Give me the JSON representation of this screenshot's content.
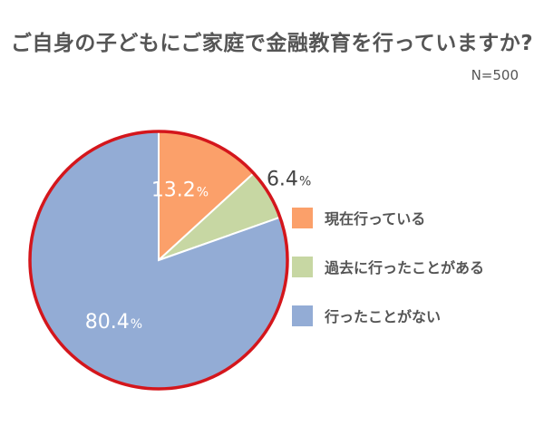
{
  "title": "ご自身の子どもにご家庭で金融教育を行っていますか?",
  "sample_size": "N=500",
  "colors": {
    "outline": "#d4161c",
    "separator": "#ffffff"
  },
  "chart_data": {
    "type": "pie",
    "title": "ご自身の子どもにご家庭で金融教育を行っていますか?",
    "note": "N=500",
    "legend_position": "right",
    "slices": [
      {
        "label": "現在行っている",
        "value": 13.2,
        "display": "13.2",
        "unit": "%",
        "color": "#fba06a"
      },
      {
        "label": "過去に行ったことがある",
        "value": 6.4,
        "display": "6.4",
        "unit": "%",
        "color": "#c7d7a3"
      },
      {
        "label": "行ったことがない",
        "value": 80.4,
        "display": "80.4",
        "unit": "%",
        "color": "#93acd5"
      }
    ]
  }
}
